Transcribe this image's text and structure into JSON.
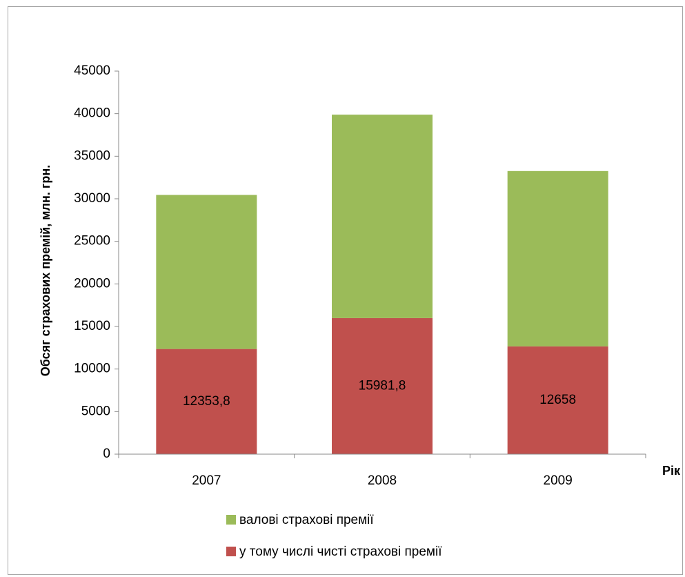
{
  "chart_data": {
    "type": "bar",
    "stacked": true,
    "categories": [
      "2007",
      "2008",
      "2009"
    ],
    "series": [
      {
        "name": "у тому числі чисті страхові премії",
        "values": [
          12353.8,
          15981.8,
          12658
        ],
        "data_labels": [
          "12353,8",
          "15981,8",
          "12658"
        ],
        "color": "#c0504d"
      },
      {
        "name": "валові страхові премії",
        "values": [
          18100,
          23900,
          20600
        ],
        "totals": [
          30450,
          39880,
          33260
        ],
        "color": "#9bbb59"
      }
    ],
    "ylabel": "Обсяг страхових премій, млн. грн.",
    "xlabel": "Рік",
    "ylim": [
      0,
      45000
    ],
    "yticks": [
      0,
      5000,
      10000,
      15000,
      20000,
      25000,
      30000,
      35000,
      40000,
      45000
    ],
    "grid": false,
    "legend_position": "bottom",
    "legend_order": [
      "валові страхові премії",
      "у тому числі чисті страхові премії"
    ]
  }
}
